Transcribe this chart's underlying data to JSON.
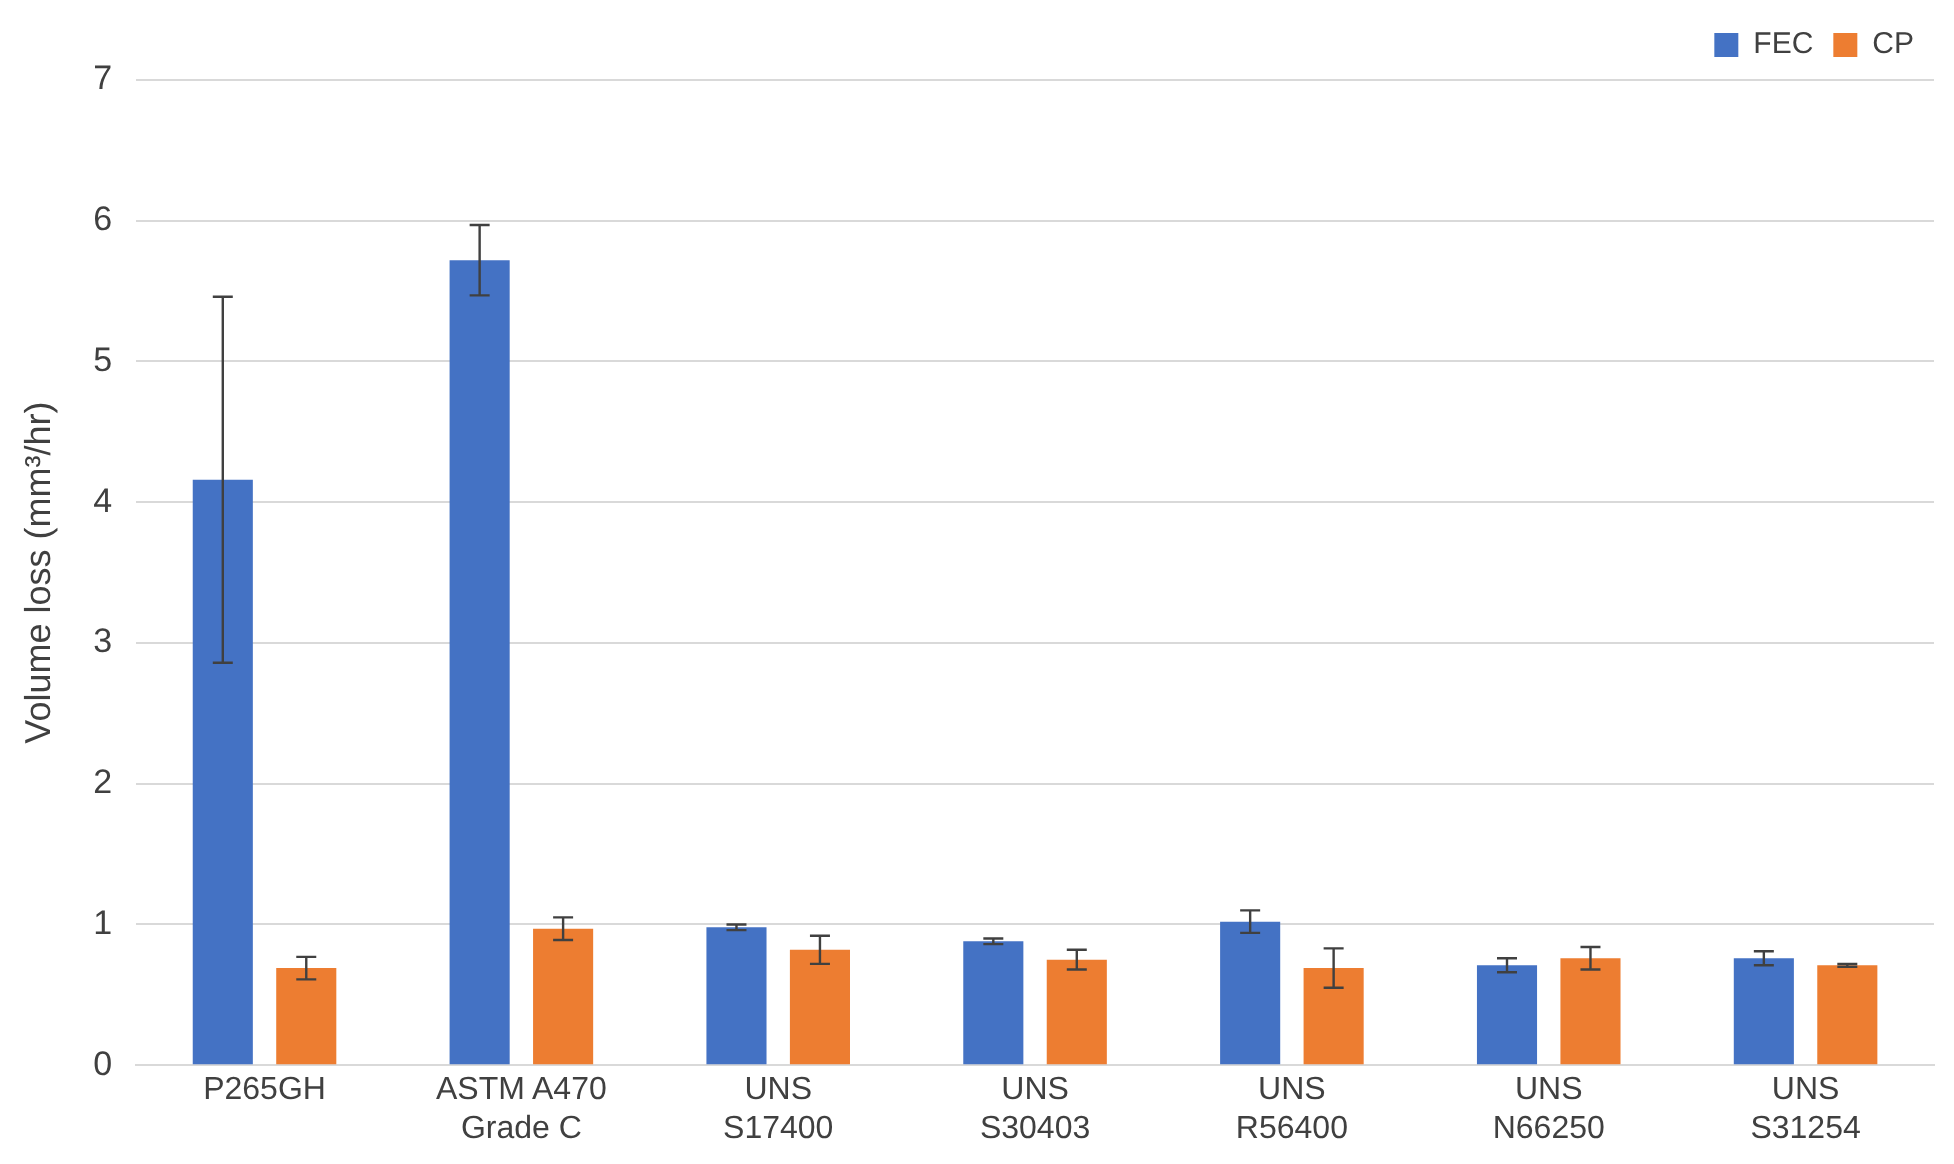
{
  "chart_data": {
    "type": "bar",
    "ylabel": "Volume loss (mm³/hr)",
    "categories": [
      "P265GH",
      "ASTM A470\nGrade C",
      "UNS\nS17400",
      "UNS\nS30403",
      "UNS\nR56400",
      "UNS\nN66250",
      "UNS\nS31254"
    ],
    "series": [
      {
        "name": "FEC",
        "color": "#4472c4",
        "values": [
          4.16,
          5.72,
          0.98,
          0.88,
          1.02,
          0.71,
          0.76
        ],
        "errors": [
          1.3,
          0.25,
          0.02,
          0.02,
          0.08,
          0.05,
          0.05
        ]
      },
      {
        "name": "CP",
        "color": "#ed7d31",
        "values": [
          0.69,
          0.97,
          0.82,
          0.75,
          0.69,
          0.76,
          0.71
        ],
        "errors": [
          0.08,
          0.08,
          0.1,
          0.07,
          0.14,
          0.08,
          0.01
        ]
      }
    ],
    "ylim": [
      0,
      7
    ],
    "yticks": [
      0,
      1,
      2,
      3,
      4,
      5,
      6,
      7
    ],
    "grid": "y",
    "legend": "top right"
  }
}
